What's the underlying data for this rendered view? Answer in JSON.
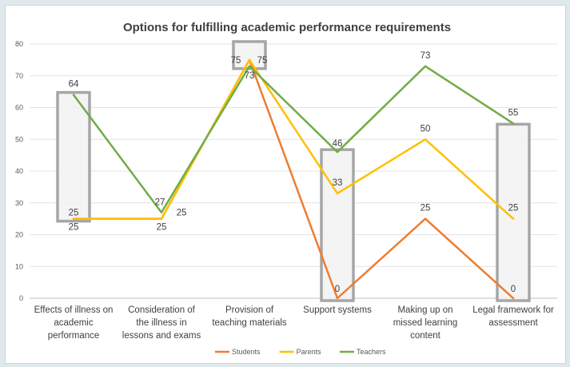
{
  "chart_data": {
    "type": "line",
    "title": "Options for fulfilling academic performance requirements",
    "categories": [
      [
        "Effects of illness on",
        "academic",
        "performance"
      ],
      [
        "Consideration of",
        "the illness in",
        "lessons and exams"
      ],
      [
        "Provision of",
        "teaching materials"
      ],
      [
        "Support systems"
      ],
      [
        "Making up on",
        "missed learning",
        "content"
      ],
      [
        "Legal framework for",
        "assessment"
      ]
    ],
    "ylim": [
      0,
      80
    ],
    "yticks": [
      "0",
      "10",
      "20",
      "30",
      "40",
      "50",
      "60",
      "70",
      "80"
    ],
    "grid": true,
    "legend_position": "bottom",
    "series": [
      {
        "name": "Students",
        "color": "#ed7d31",
        "values": [
          25,
          25,
          75,
          0,
          25,
          0
        ]
      },
      {
        "name": "Parents",
        "color": "#ffc000",
        "values": [
          25,
          25,
          75,
          33,
          50,
          25
        ]
      },
      {
        "name": "Teachers",
        "color": "#70ad47",
        "values": [
          64,
          27,
          73,
          46,
          73,
          55
        ]
      }
    ],
    "data_labels": [
      {
        "text": "64"
      },
      {
        "text": "25"
      },
      {
        "text": "25"
      },
      {
        "text": "27"
      },
      {
        "text": "25"
      },
      {
        "text": "25"
      },
      {
        "text": "75"
      },
      {
        "text": "75"
      },
      {
        "text": "73"
      },
      {
        "text": "46"
      },
      {
        "text": "33"
      },
      {
        "text": "0"
      },
      {
        "text": "73"
      },
      {
        "text": "50"
      },
      {
        "text": "25"
      },
      {
        "text": "55"
      },
      {
        "text": "25"
      },
      {
        "text": "0"
      }
    ],
    "highlight_ranges": [
      {
        "category_index": 0,
        "from": 25,
        "to": 64
      },
      {
        "category_index": 2,
        "from": 73,
        "to": 80
      },
      {
        "category_index": 3,
        "from": 0,
        "to": 46
      },
      {
        "category_index": 5,
        "from": 0,
        "to": 54
      }
    ]
  }
}
